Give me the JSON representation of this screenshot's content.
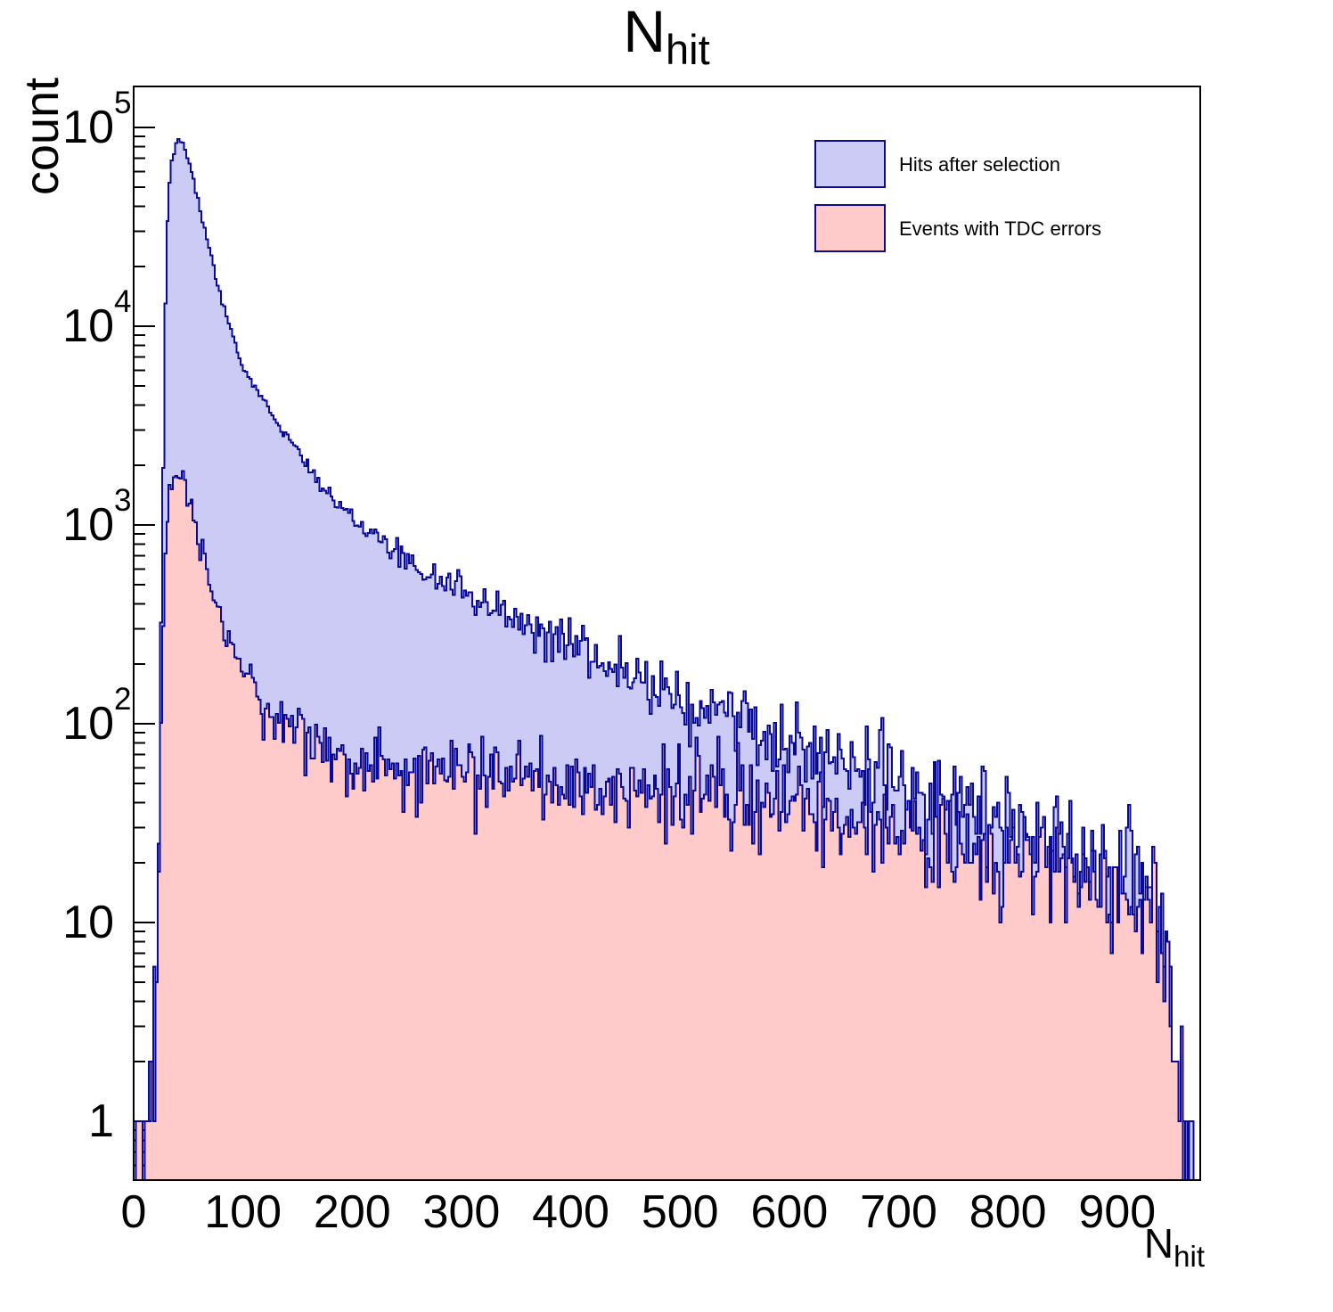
{
  "title": {
    "main": "N",
    "sub": "hit"
  },
  "axes": {
    "y": {
      "title": "count",
      "scale": "log",
      "tick_labels": [
        {
          "value": 1,
          "label": "1"
        },
        {
          "value": 10,
          "label": "10"
        },
        {
          "value": 100,
          "label": "10",
          "exponent": "2"
        },
        {
          "value": 1000,
          "label": "10",
          "exponent": "3"
        },
        {
          "value": 10000,
          "label": "10",
          "exponent": "4"
        },
        {
          "value": 100000,
          "label": "10",
          "exponent": "5"
        }
      ]
    },
    "x": {
      "title_main": "N",
      "title_sub": "hit",
      "tick_values": [
        0,
        100,
        200,
        300,
        400,
        500,
        600,
        700,
        800,
        900
      ],
      "minor_tick_step": 20
    }
  },
  "legend": {
    "position": "top-right",
    "items": [
      {
        "label": "Hits after selection",
        "fill": "#cbcbf5",
        "line": "#0a0a99"
      },
      {
        "label": "Events with TDC errors",
        "fill": "#fecaca",
        "line": "#0a0a99"
      }
    ]
  },
  "chart_data": {
    "type": "area",
    "subtype": "step-histogram-log-y",
    "title": "N_hit",
    "xlabel": "N_hit",
    "ylabel": "count",
    "grid": false,
    "legend_position": "top-right",
    "x_range": [
      0,
      976
    ],
    "bin_width": 2,
    "y_scale": "log",
    "y_range": [
      0.5,
      164000
    ],
    "noise_seed": 12,
    "series": [
      {
        "name": "Hits after selection",
        "fill": "#cbcbf5",
        "line": "#0a0a99",
        "range": [
          14,
          969
        ],
        "peak": {
          "x": 41,
          "count": 86000
        },
        "anchors": [
          [
            14,
            0.6
          ],
          [
            18,
            1.3
          ],
          [
            21,
            5
          ],
          [
            24,
            60
          ],
          [
            26,
            700
          ],
          [
            28,
            7000
          ],
          [
            30,
            25000
          ],
          [
            32,
            45000
          ],
          [
            34,
            62000
          ],
          [
            36,
            71500
          ],
          [
            38,
            79000
          ],
          [
            40,
            84500
          ],
          [
            42,
            86000
          ],
          [
            44,
            84500
          ],
          [
            46,
            81000
          ],
          [
            48,
            75500
          ],
          [
            50,
            69000
          ],
          [
            53,
            59500
          ],
          [
            56,
            50500
          ],
          [
            60,
            40500
          ],
          [
            64,
            32500
          ],
          [
            68,
            26000
          ],
          [
            72,
            21000
          ],
          [
            76,
            17200
          ],
          [
            80,
            14200
          ],
          [
            85,
            11200
          ],
          [
            90,
            9000
          ],
          [
            95,
            7400
          ],
          [
            100,
            6200
          ],
          [
            105,
            5600
          ],
          [
            110,
            5100
          ],
          [
            120,
            4150
          ],
          [
            130,
            3400
          ],
          [
            140,
            2800
          ],
          [
            150,
            2300
          ],
          [
            160,
            1920
          ],
          [
            170,
            1640
          ],
          [
            180,
            1420
          ],
          [
            190,
            1250
          ],
          [
            200,
            1110
          ],
          [
            215,
            930
          ],
          [
            230,
            800
          ],
          [
            245,
            700
          ],
          [
            260,
            615
          ],
          [
            275,
            550
          ],
          [
            290,
            495
          ],
          [
            305,
            450
          ],
          [
            320,
            408
          ],
          [
            335,
            370
          ],
          [
            350,
            336
          ],
          [
            365,
            305
          ],
          [
            380,
            277
          ],
          [
            395,
            252
          ],
          [
            410,
            230
          ],
          [
            425,
            211
          ],
          [
            440,
            194
          ],
          [
            455,
            178
          ],
          [
            470,
            164
          ],
          [
            485,
            151
          ],
          [
            500,
            139
          ],
          [
            515,
            128
          ],
          [
            530,
            118
          ],
          [
            545,
            109
          ],
          [
            560,
            101
          ],
          [
            575,
            93
          ],
          [
            590,
            86
          ],
          [
            605,
            80
          ],
          [
            620,
            74
          ],
          [
            635,
            68
          ],
          [
            650,
            63
          ],
          [
            665,
            58
          ],
          [
            680,
            54
          ],
          [
            695,
            50
          ],
          [
            710,
            46
          ],
          [
            725,
            43
          ],
          [
            740,
            40
          ],
          [
            755,
            37
          ],
          [
            770,
            34
          ],
          [
            785,
            32
          ],
          [
            800,
            29
          ],
          [
            815,
            27
          ],
          [
            830,
            25
          ],
          [
            845,
            23
          ],
          [
            860,
            22
          ],
          [
            875,
            20
          ],
          [
            890,
            19
          ],
          [
            905,
            17
          ],
          [
            920,
            15
          ],
          [
            930,
            13
          ],
          [
            938,
            10
          ],
          [
            944,
            7
          ],
          [
            950,
            4
          ],
          [
            955,
            2
          ],
          [
            958,
            1
          ],
          [
            963,
            0.8
          ],
          [
            969,
            0.7
          ]
        ],
        "noise": [
          [
            14,
            0.3
          ],
          [
            20,
            0.25
          ],
          [
            26,
            0.05
          ],
          [
            30,
            0.008
          ],
          [
            120,
            0.01
          ],
          [
            170,
            0.018
          ],
          [
            220,
            0.028
          ],
          [
            300,
            0.042
          ],
          [
            400,
            0.06
          ],
          [
            500,
            0.085
          ],
          [
            600,
            0.1
          ],
          [
            700,
            0.12
          ],
          [
            800,
            0.14
          ],
          [
            900,
            0.16
          ],
          [
            969,
            0.2
          ]
        ]
      },
      {
        "name": "Events with TDC errors",
        "fill": "#fecaca",
        "line": "#0a0a99",
        "range": [
          2,
          963
        ],
        "peak": {
          "x": 41,
          "count": 1860
        },
        "anchors": [
          [
            2,
            0.5
          ],
          [
            8,
            0.7
          ],
          [
            14,
            0.9
          ],
          [
            18,
            1.5
          ],
          [
            21,
            4
          ],
          [
            23,
            15
          ],
          [
            25,
            80
          ],
          [
            27,
            350
          ],
          [
            29,
            750
          ],
          [
            31,
            1150
          ],
          [
            33,
            1450
          ],
          [
            35,
            1650
          ],
          [
            37,
            1770
          ],
          [
            39,
            1840
          ],
          [
            41,
            1860
          ],
          [
            43,
            1830
          ],
          [
            45,
            1750
          ],
          [
            47,
            1620
          ],
          [
            49,
            1470
          ],
          [
            52,
            1250
          ],
          [
            55,
            1050
          ],
          [
            58,
            890
          ],
          [
            62,
            720
          ],
          [
            66,
            590
          ],
          [
            70,
            490
          ],
          [
            74,
            410
          ],
          [
            78,
            355
          ],
          [
            82,
            310
          ],
          [
            86,
            275
          ],
          [
            90,
            245
          ],
          [
            95,
            215
          ],
          [
            100,
            192
          ],
          [
            107,
            163
          ],
          [
            114,
            143
          ],
          [
            121,
            128
          ],
          [
            128,
            116
          ],
          [
            135,
            107
          ],
          [
            142,
            99
          ],
          [
            150,
            91
          ],
          [
            158,
            85
          ],
          [
            166,
            79
          ],
          [
            174,
            75
          ],
          [
            182,
            71
          ],
          [
            190,
            68
          ],
          [
            200,
            64
          ],
          [
            215,
            61
          ],
          [
            230,
            59
          ],
          [
            250,
            57
          ],
          [
            270,
            56
          ],
          [
            290,
            55
          ],
          [
            310,
            54
          ],
          [
            330,
            53
          ],
          [
            350,
            52
          ],
          [
            370,
            51
          ],
          [
            390,
            50
          ],
          [
            410,
            49
          ],
          [
            430,
            48
          ],
          [
            450,
            47
          ],
          [
            470,
            46
          ],
          [
            490,
            45
          ],
          [
            510,
            44
          ],
          [
            530,
            42
          ],
          [
            550,
            41
          ],
          [
            570,
            39
          ],
          [
            590,
            38
          ],
          [
            610,
            36
          ],
          [
            630,
            34
          ],
          [
            650,
            32
          ],
          [
            670,
            30
          ],
          [
            690,
            29
          ],
          [
            710,
            27
          ],
          [
            730,
            26
          ],
          [
            750,
            24
          ],
          [
            770,
            23
          ],
          [
            790,
            22
          ],
          [
            810,
            21
          ],
          [
            830,
            20
          ],
          [
            850,
            19
          ],
          [
            870,
            18
          ],
          [
            890,
            16
          ],
          [
            905,
            15
          ],
          [
            920,
            13
          ],
          [
            930,
            11
          ],
          [
            938,
            9
          ],
          [
            944,
            7
          ],
          [
            950,
            4
          ],
          [
            955,
            2
          ],
          [
            958,
            1
          ],
          [
            963,
            0.8
          ]
        ],
        "noise": [
          [
            2,
            0.3
          ],
          [
            20,
            0.2
          ],
          [
            28,
            0.04
          ],
          [
            40,
            0.02
          ],
          [
            60,
            0.035
          ],
          [
            90,
            0.05
          ],
          [
            130,
            0.07
          ],
          [
            180,
            0.085
          ],
          [
            240,
            0.095
          ],
          [
            450,
            0.1
          ],
          [
            600,
            0.11
          ],
          [
            750,
            0.13
          ],
          [
            900,
            0.16
          ],
          [
            963,
            0.2
          ]
        ]
      }
    ]
  }
}
